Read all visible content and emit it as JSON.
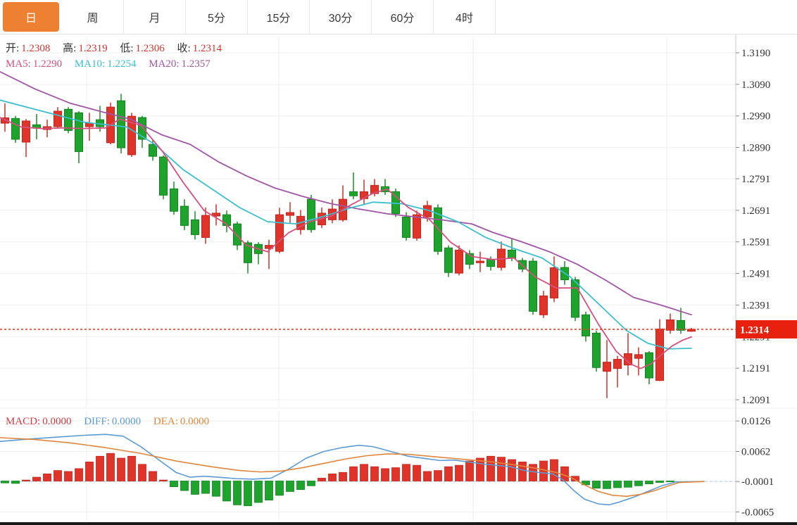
{
  "tab_bar": {
    "tabs": [
      {
        "label": "日",
        "active": true
      },
      {
        "label": "周",
        "active": false
      },
      {
        "label": "月",
        "active": false
      },
      {
        "label": "5分",
        "active": false
      },
      {
        "label": "15分",
        "active": false
      },
      {
        "label": "30分",
        "active": false
      },
      {
        "label": "60分",
        "active": false
      },
      {
        "label": "4时",
        "active": false
      }
    ]
  },
  "main_chart": {
    "ohlc_legend": [
      {
        "label": "开:",
        "value": "1.2308"
      },
      {
        "label": "高:",
        "value": "1.2319"
      },
      {
        "label": "低:",
        "value": "1.2306"
      },
      {
        "label": "收:",
        "value": "1.2314"
      }
    ],
    "ma_legend": [
      {
        "label": "MA5:",
        "value": "1.2290"
      },
      {
        "label": "MA10:",
        "value": "1.2254"
      },
      {
        "label": "MA20:",
        "value": "1.2357"
      }
    ],
    "price_tag": "1.2314"
  },
  "macd_panel": {
    "legend": [
      {
        "label": "MACD:",
        "value": "0.0000"
      },
      {
        "label": "DIFF:",
        "value": "0.0000"
      },
      {
        "label": "DEA:",
        "value": "0.0000"
      }
    ]
  },
  "colors": {
    "up": "#e0342b",
    "up_stroke": "#c4241c",
    "down": "#1ea32d",
    "down_stroke": "#12821f",
    "ma5": "#d6507c",
    "ma10": "#3bbfce",
    "ma20": "#a055a5",
    "diff": "#5b9bd5",
    "dea": "#e0863c",
    "grid": "#efefef",
    "vgrid": "#ececec",
    "axis": "#cccccc",
    "tick": "#888888",
    "tick_text": "#333333",
    "price_dotted": "#e8402a",
    "zero_dash": "#a9cdea",
    "tag_bg": "#e8210e",
    "tag_text": "#ffffff",
    "tab_active_bg": "#ee8131",
    "legend_ohlc_value": "#cf352c",
    "legend_macd": "#cf3a44",
    "bottom_bar": "#1a1a1a"
  },
  "chart_data": [
    {
      "type": "candlestick",
      "panel": "main",
      "y_axis_labels": [
        "1.3190",
        "1.3090",
        "1.2990",
        "1.2890",
        "1.2791",
        "1.2691",
        "1.2591",
        "1.2491",
        "1.2391",
        "1.2291",
        "1.2191",
        "1.2091"
      ],
      "current_price": 1.2314,
      "ohlc": {
        "open": 1.2308,
        "high": 1.2319,
        "low": 1.2306,
        "close": 1.2314
      },
      "ma_values": {
        "ma5": 1.229,
        "ma10": 1.2254,
        "ma20": 1.2357
      },
      "candles_format": [
        "open",
        "high",
        "low",
        "close"
      ],
      "candles": [
        [
          1.2967,
          1.303,
          1.294,
          1.2984
        ],
        [
          1.2982,
          1.299,
          1.2905,
          1.2916
        ],
        [
          1.2907,
          1.298,
          1.286,
          1.2974
        ],
        [
          1.2962,
          1.2996,
          1.2916,
          1.2951
        ],
        [
          1.2947,
          1.2978,
          1.2922,
          1.2956
        ],
        [
          1.2956,
          1.3018,
          1.295,
          1.3005
        ],
        [
          1.3011,
          1.3018,
          1.2935,
          1.2944
        ],
        [
          1.3,
          1.3005,
          1.284,
          1.2877
        ],
        [
          1.2956,
          1.3,
          1.2911,
          1.2967
        ],
        [
          1.2978,
          1.3022,
          1.294,
          1.2956
        ],
        [
          1.2905,
          1.3032,
          1.29,
          1.3018
        ],
        [
          1.3038,
          1.306,
          1.2871,
          1.2889
        ],
        [
          1.2867,
          1.3,
          1.286,
          1.2989
        ],
        [
          1.2985,
          1.299,
          1.2889,
          1.2916
        ],
        [
          1.29,
          1.2916,
          1.2848,
          1.2862
        ],
        [
          1.286,
          1.2865,
          1.2726,
          1.2739
        ],
        [
          1.2759,
          1.2782,
          1.2677,
          1.2688
        ],
        [
          1.2704,
          1.2726,
          1.2628,
          1.2643
        ],
        [
          1.2661,
          1.2688,
          1.2598,
          1.2614
        ],
        [
          1.2605,
          1.27,
          1.2585,
          1.2675
        ],
        [
          1.2673,
          1.271,
          1.2643,
          1.2682
        ],
        [
          1.2677,
          1.269,
          1.2621,
          1.2643
        ],
        [
          1.2648,
          1.2655,
          1.2565,
          1.2581
        ],
        [
          1.2588,
          1.2595,
          1.2491,
          1.2525
        ],
        [
          1.2583,
          1.259,
          1.252,
          1.2554
        ],
        [
          1.257,
          1.2598,
          1.2505,
          1.258
        ],
        [
          1.2561,
          1.2699,
          1.2555,
          1.2677
        ],
        [
          1.2675,
          1.2717,
          1.2648,
          1.2684
        ],
        [
          1.263,
          1.2692,
          1.2614,
          1.2672
        ],
        [
          1.2726,
          1.274,
          1.262,
          1.263
        ],
        [
          1.2645,
          1.27,
          1.2635,
          1.2682
        ],
        [
          1.2661,
          1.2726,
          1.265,
          1.2695
        ],
        [
          1.2661,
          1.277,
          1.2655,
          1.2726
        ],
        [
          1.275,
          1.2811,
          1.2726,
          1.2737
        ],
        [
          1.2728,
          1.2788,
          1.271,
          1.275
        ],
        [
          1.2744,
          1.279,
          1.2735,
          1.277
        ],
        [
          1.2766,
          1.279,
          1.274,
          1.275
        ],
        [
          1.275,
          1.276,
          1.267,
          1.268
        ],
        [
          1.267,
          1.2685,
          1.2595,
          1.2605
        ],
        [
          1.2603,
          1.269,
          1.2595,
          1.2677
        ],
        [
          1.267,
          1.2721,
          1.2655,
          1.2706
        ],
        [
          1.2699,
          1.271,
          1.255,
          1.2561
        ],
        [
          1.2572,
          1.258,
          1.248,
          1.2494
        ],
        [
          1.2492,
          1.258,
          1.2485,
          1.2565
        ],
        [
          1.2554,
          1.2565,
          1.2505,
          1.252
        ],
        [
          1.2525,
          1.256,
          1.2495,
          1.253
        ],
        [
          1.2536,
          1.2545,
          1.25,
          1.2513
        ],
        [
          1.251,
          1.2592,
          1.25,
          1.2568
        ],
        [
          1.2565,
          1.2603,
          1.253,
          1.2539
        ],
        [
          1.2532,
          1.254,
          1.2495,
          1.2505
        ],
        [
          1.253,
          1.254,
          1.236,
          1.2371
        ],
        [
          1.236,
          1.2436,
          1.235,
          1.242
        ],
        [
          1.2413,
          1.2545,
          1.24,
          1.2509
        ],
        [
          1.251,
          1.253,
          1.2455,
          1.2471
        ],
        [
          1.2471,
          1.248,
          1.234,
          1.2352
        ],
        [
          1.236,
          1.237,
          1.2275,
          1.2293
        ],
        [
          1.2302,
          1.231,
          1.218,
          1.2193
        ],
        [
          1.2181,
          1.228,
          1.2096,
          1.221
        ],
        [
          1.219,
          1.223,
          1.213,
          1.2219
        ],
        [
          1.2201,
          1.2302,
          1.2168,
          1.2237
        ],
        [
          1.2222,
          1.2257,
          1.2168,
          1.2234
        ],
        [
          1.224,
          1.2245,
          1.214,
          1.216
        ],
        [
          1.2152,
          1.2346,
          1.215,
          1.2315
        ],
        [
          1.2311,
          1.2364,
          1.23,
          1.2344
        ],
        [
          1.2342,
          1.2382,
          1.23,
          1.2311
        ],
        [
          1.2308,
          1.2319,
          1.2306,
          1.2314
        ]
      ],
      "ma5_line": [
        [
          0,
          1.2985
        ],
        [
          30,
          1.2955
        ],
        [
          60,
          1.295
        ],
        [
          90,
          1.2952
        ],
        [
          120,
          1.295
        ],
        [
          150,
          1.2952
        ],
        [
          170,
          1.298
        ],
        [
          200,
          1.296
        ],
        [
          230,
          1.288
        ],
        [
          260,
          1.278
        ],
        [
          290,
          1.269
        ],
        [
          320,
          1.265
        ],
        [
          350,
          1.258
        ],
        [
          380,
          1.256
        ],
        [
          410,
          1.262
        ],
        [
          440,
          1.2655
        ],
        [
          470,
          1.2672
        ],
        [
          500,
          1.271
        ],
        [
          530,
          1.2745
        ],
        [
          550,
          1.2758
        ],
        [
          580,
          1.27
        ],
        [
          610,
          1.2662
        ],
        [
          640,
          1.259
        ],
        [
          670,
          1.2545
        ],
        [
          700,
          1.2535
        ],
        [
          730,
          1.254
        ],
        [
          760,
          1.248
        ],
        [
          790,
          1.2445
        ],
        [
          820,
          1.2445
        ],
        [
          850,
          1.233
        ],
        [
          875,
          1.2245
        ],
        [
          895,
          1.2205
        ],
        [
          910,
          1.219
        ],
        [
          925,
          1.2205
        ],
        [
          940,
          1.2235
        ],
        [
          955,
          1.2262
        ],
        [
          970,
          1.228
        ],
        [
          982,
          1.229
        ]
      ],
      "ma10_line": [
        [
          0,
          1.304
        ],
        [
          60,
          1.3005
        ],
        [
          120,
          1.297
        ],
        [
          180,
          1.2955
        ],
        [
          220,
          1.29
        ],
        [
          260,
          1.282
        ],
        [
          300,
          1.276
        ],
        [
          340,
          1.27
        ],
        [
          380,
          1.2655
        ],
        [
          420,
          1.2648
        ],
        [
          460,
          1.2672
        ],
        [
          500,
          1.27
        ],
        [
          530,
          1.2717
        ],
        [
          570,
          1.2712
        ],
        [
          610,
          1.269
        ],
        [
          650,
          1.2655
        ],
        [
          690,
          1.2605
        ],
        [
          730,
          1.257
        ],
        [
          770,
          1.254
        ],
        [
          810,
          1.248
        ],
        [
          850,
          1.2395
        ],
        [
          890,
          1.231
        ],
        [
          920,
          1.227
        ],
        [
          950,
          1.2252
        ],
        [
          982,
          1.2254
        ]
      ],
      "ma20_line": [
        [
          0,
          1.313
        ],
        [
          50,
          1.3075
        ],
        [
          100,
          1.303
        ],
        [
          150,
          1.3
        ],
        [
          185,
          1.298
        ],
        [
          230,
          1.293
        ],
        [
          270,
          1.29
        ],
        [
          310,
          1.2845
        ],
        [
          350,
          1.28
        ],
        [
          390,
          1.2762
        ],
        [
          430,
          1.2735
        ],
        [
          470,
          1.2712
        ],
        [
          510,
          1.2695
        ],
        [
          550,
          1.268
        ],
        [
          590,
          1.267
        ],
        [
          630,
          1.266
        ],
        [
          670,
          1.2648
        ],
        [
          700,
          1.2621
        ],
        [
          740,
          1.2592
        ],
        [
          780,
          1.256
        ],
        [
          820,
          1.252
        ],
        [
          860,
          1.247
        ],
        [
          900,
          1.2415
        ],
        [
          940,
          1.239
        ],
        [
          982,
          1.236
        ]
      ]
    },
    {
      "type": "macd",
      "panel": "sub",
      "y_axis_labels": [
        "0.0126",
        "0.0062",
        "-0.0001",
        "-0.0065"
      ],
      "values": {
        "macd": 0.0,
        "diff": 0.0,
        "dea": 0.0
      },
      "histogram": [
        -0.0004,
        -0.0005,
        0.0002,
        0.0008,
        0.0015,
        0.0022,
        0.002,
        0.0026,
        0.004,
        0.0052,
        0.0058,
        0.0048,
        0.0052,
        0.0035,
        0.002,
        0.0002,
        -0.0012,
        -0.002,
        -0.0028,
        -0.0026,
        -0.0032,
        -0.0042,
        -0.005,
        -0.0052,
        -0.0045,
        -0.004,
        -0.003,
        -0.0022,
        -0.0018,
        -0.001,
        0.0006,
        0.0015,
        0.0018,
        0.003,
        0.0035,
        0.003,
        0.0026,
        0.0028,
        0.0035,
        0.0033,
        0.002,
        0.0022,
        0.003,
        0.0033,
        0.0042,
        0.0048,
        0.0052,
        0.005,
        0.0045,
        0.004,
        0.0035,
        0.0042,
        0.0045,
        0.003,
        0.001,
        -0.0008,
        -0.0015,
        -0.0016,
        -0.0014,
        -0.0013,
        -0.001,
        -0.0006,
        -0.0003,
        -0.0001,
        0.0,
        0.0
      ],
      "diff_line": [
        [
          0,
          0.0083
        ],
        [
          40,
          0.0088
        ],
        [
          80,
          0.0092
        ],
        [
          120,
          0.0096
        ],
        [
          150,
          0.0098
        ],
        [
          175,
          0.0094
        ],
        [
          200,
          0.0072
        ],
        [
          225,
          0.0045
        ],
        [
          250,
          0.0018
        ],
        [
          270,
          0.0008
        ],
        [
          290,
          0.001
        ],
        [
          310,
          0.0008
        ],
        [
          335,
          0.0005
        ],
        [
          360,
          0.0004
        ],
        [
          385,
          0.0006
        ],
        [
          410,
          0.0025
        ],
        [
          435,
          0.0048
        ],
        [
          460,
          0.0062
        ],
        [
          485,
          0.007
        ],
        [
          510,
          0.0075
        ],
        [
          530,
          0.0072
        ],
        [
          555,
          0.0062
        ],
        [
          580,
          0.0052
        ],
        [
          605,
          0.0047
        ],
        [
          625,
          0.0043
        ],
        [
          645,
          0.0044
        ],
        [
          665,
          0.004
        ],
        [
          685,
          0.0036
        ],
        [
          705,
          0.0033
        ],
        [
          725,
          0.003
        ],
        [
          745,
          0.0022
        ],
        [
          765,
          0.0018
        ],
        [
          785,
          0.0015
        ],
        [
          800,
          0.0002
        ],
        [
          815,
          -0.002
        ],
        [
          830,
          -0.0038
        ],
        [
          850,
          -0.0048
        ],
        [
          865,
          -0.005
        ],
        [
          880,
          -0.0044
        ],
        [
          900,
          -0.0034
        ],
        [
          920,
          -0.0022
        ],
        [
          940,
          -0.001
        ],
        [
          960,
          -0.0002
        ],
        [
          1000,
          -0.0001
        ]
      ],
      "dea_line": [
        [
          0,
          0.0091
        ],
        [
          50,
          0.0087
        ],
        [
          100,
          0.008
        ],
        [
          150,
          0.007
        ],
        [
          200,
          0.0058
        ],
        [
          250,
          0.0042
        ],
        [
          300,
          0.003
        ],
        [
          340,
          0.0022
        ],
        [
          370,
          0.0019
        ],
        [
          400,
          0.0021
        ],
        [
          430,
          0.0028
        ],
        [
          460,
          0.0037
        ],
        [
          490,
          0.0046
        ],
        [
          520,
          0.0053
        ],
        [
          550,
          0.0057
        ],
        [
          580,
          0.0056
        ],
        [
          610,
          0.0052
        ],
        [
          640,
          0.0048
        ],
        [
          670,
          0.0044
        ],
        [
          700,
          0.004
        ],
        [
          730,
          0.0034
        ],
        [
          760,
          0.0027
        ],
        [
          790,
          0.0018
        ],
        [
          810,
          0.0008
        ],
        [
          830,
          -0.0008
        ],
        [
          850,
          -0.0022
        ],
        [
          870,
          -0.003
        ],
        [
          890,
          -0.0032
        ],
        [
          910,
          -0.0028
        ],
        [
          930,
          -0.002
        ],
        [
          950,
          -0.001
        ],
        [
          965,
          -0.0003
        ],
        [
          1000,
          -0.0001
        ]
      ]
    }
  ]
}
